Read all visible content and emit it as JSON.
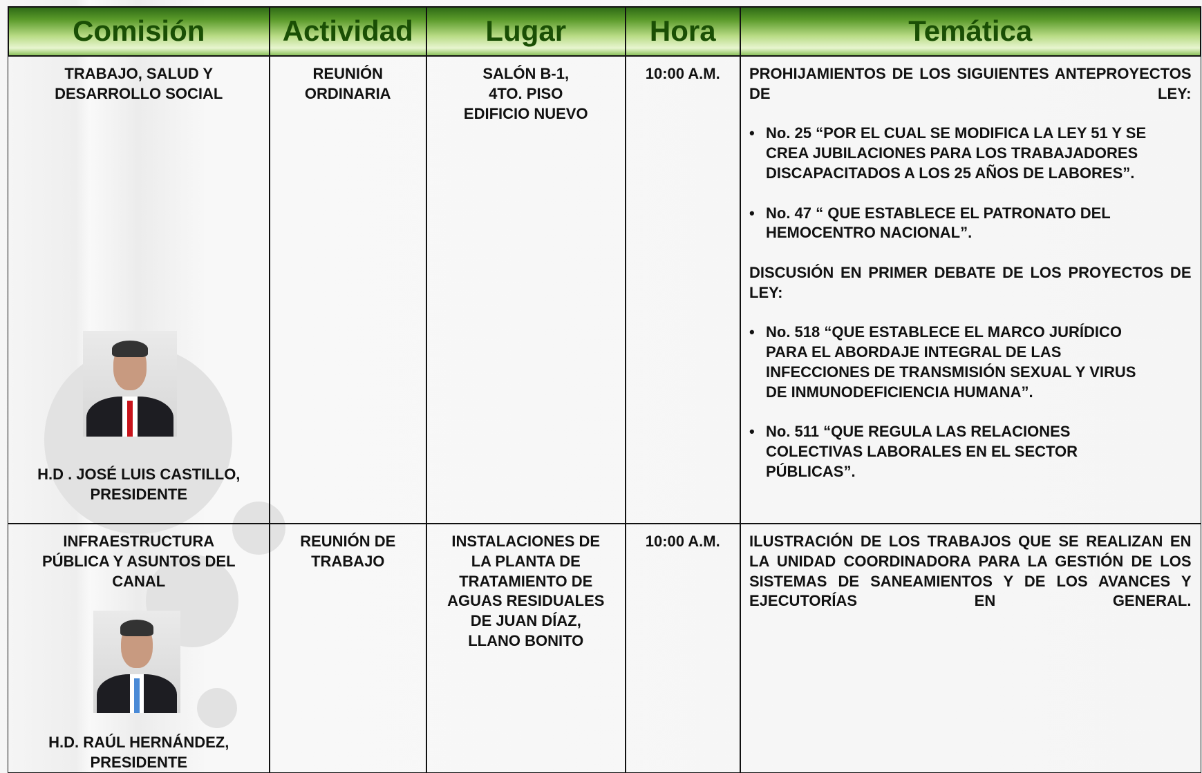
{
  "table": {
    "headers": [
      "Comisión",
      "Actividad",
      "Lugar",
      "Hora",
      "Temática"
    ],
    "rows": [
      {
        "comision": [
          "TRABAJO, SALUD Y",
          "DESARROLLO SOCIAL"
        ],
        "presidente": [
          "H.D . JOSÉ LUIS CASTILLO,",
          "PRESIDENTE"
        ],
        "actividad": [
          "REUNIÓN",
          "ORDINARIA"
        ],
        "lugar": [
          "SALÓN B-1,",
          "4TO. PISO",
          "EDIFICIO NUEVO"
        ],
        "hora": "10:00 A.M.",
        "tematica": [
          {
            "text": "PROHIJAMIENTOS DE LOS SIGUIENTES ANTEPROYECTOS DE LEY:"
          },
          {
            "bullet": "No. 25 “POR EL CUAL SE MODIFICA LA LEY 51 Y SE CREA JUBILACIONES PARA LOS TRABAJADORES DISCAPACITADOS A LOS 25 AÑOS DE LABORES”."
          },
          {
            "bullet": "No. 47 “ QUE ESTABLECE EL PATRONATO DEL HEMOCENTRO NACIONAL”."
          },
          {
            "text": "DISCUSIÓN EN PRIMER DEBATE DE LOS PROYECTOS DE LEY:"
          },
          {
            "bullet": "No. 518 “QUE ESTABLECE EL MARCO JURÍDICO PARA EL ABORDAJE INTEGRAL DE LAS INFECCIONES DE TRANSMISIÓN SEXUAL Y VIRUS DE INMUNODEFICIENCIA HUMANA”."
          },
          {
            "bullet": "No. 511 “QUE REGULA LAS RELACIONES COLECTIVAS LABORALES EN EL SECTOR PÚBLICAS”."
          }
        ]
      },
      {
        "comision": [
          "INFRAESTRUCTURA",
          "PÚBLICA Y ASUNTOS DEL",
          "CANAL"
        ],
        "presidente": [
          "H.D. RAÚL HERNÁNDEZ,",
          "PRESIDENTE"
        ],
        "actividad": [
          "REUNIÓN DE",
          "TRABAJO"
        ],
        "lugar": [
          "INSTALACIONES DE",
          "LA PLANTA DE",
          "TRATAMIENTO DE",
          "AGUAS RESIDUALES",
          "DE JUAN DÍAZ,",
          "LLANO BONITO"
        ],
        "hora": "10:00 A.M.",
        "tematica": [
          {
            "text": "ILUSTRACIÓN DE LOS TRABAJOS QUE SE REALIZAN EN LA UNIDAD COORDINADORA PARA LA GESTIÓN DE LOS SISTEMAS DE SANEAMIENTOS Y DE LOS AVANCES Y EJECUTORÍAS EN GENERAL."
          }
        ]
      }
    ]
  }
}
